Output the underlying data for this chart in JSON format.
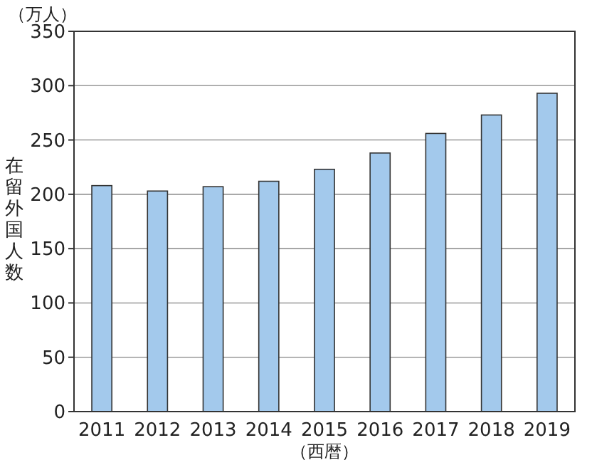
{
  "chart_data": {
    "type": "bar",
    "categories": [
      "2011",
      "2012",
      "2013",
      "2014",
      "2015",
      "2016",
      "2017",
      "2018",
      "2019"
    ],
    "values": [
      208,
      203,
      207,
      212,
      223,
      238,
      256,
      273,
      293
    ],
    "color": "#a3c9ec",
    "ylim": [
      0,
      350
    ],
    "yticks": [
      0,
      50,
      100,
      150,
      200,
      250,
      300,
      350
    ],
    "grid": "y",
    "ylabel": "在留外国人数",
    "xlabel": "（西暦）",
    "annotations": [
      "（万人）"
    ]
  }
}
